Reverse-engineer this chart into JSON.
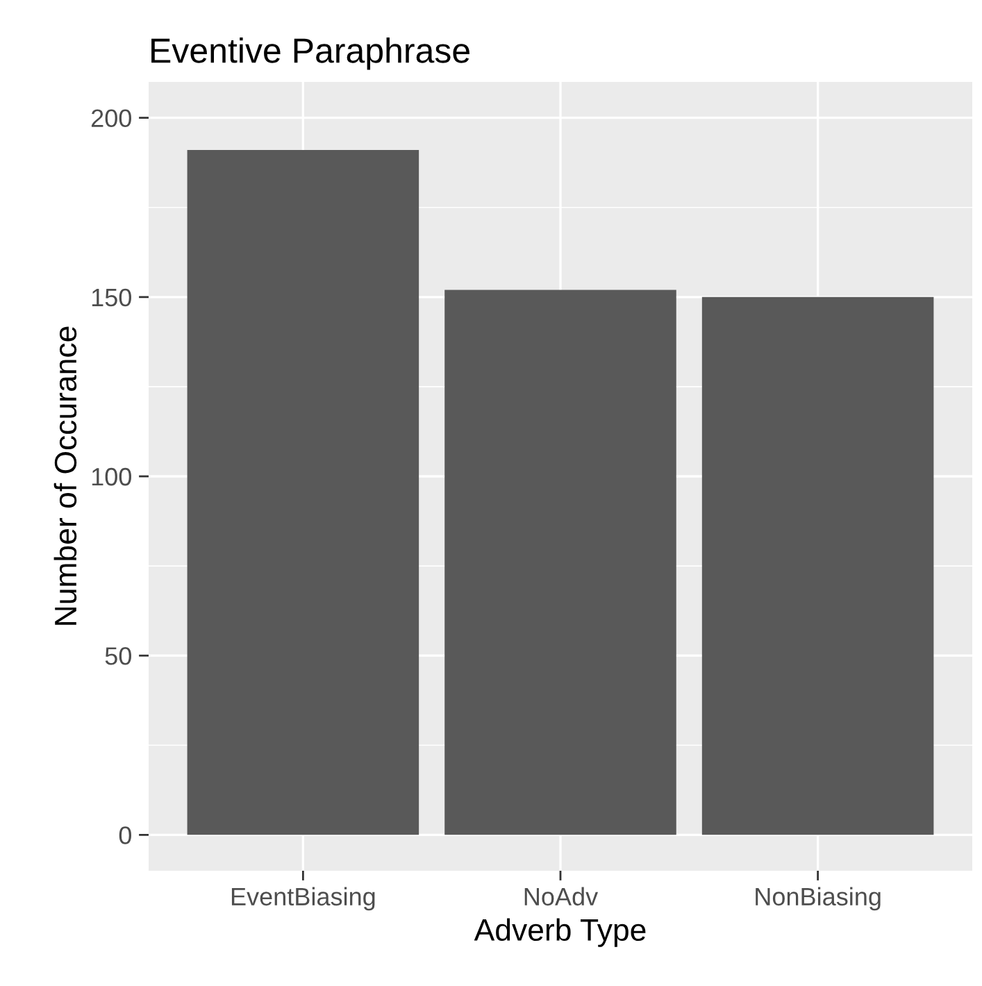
{
  "chart_data": {
    "type": "bar",
    "title": "Eventive Paraphrase",
    "xlabel": "Adverb Type",
    "ylabel": "Number of Occurance",
    "categories": [
      "EventBiasing",
      "NoAdv",
      "NonBiasing"
    ],
    "values": [
      191,
      152,
      150
    ],
    "color": "#595959",
    "ylim": [
      -10,
      210
    ],
    "yticks": [
      0,
      50,
      100,
      150,
      200
    ],
    "grid": true
  }
}
